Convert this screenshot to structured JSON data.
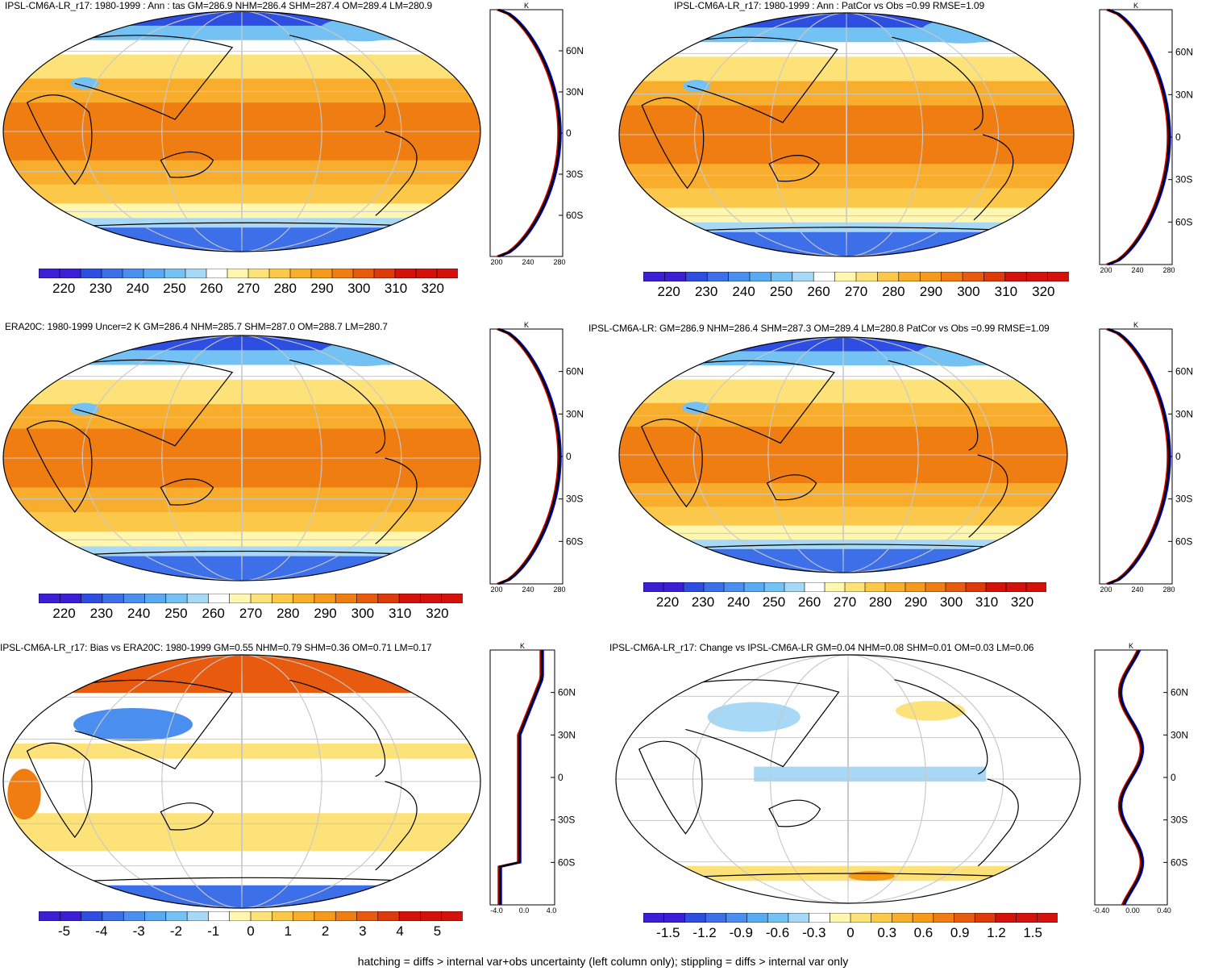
{
  "panels": [
    {
      "id": "p1",
      "title": "IPSL-CM6A-LR_r17: 1980-1999 : Ann : tas GM=286.9 NHM=286.4 SHM=287.4 OM=289.4 LM=280.9",
      "kind": "abs",
      "colorbar": [
        "220",
        "230",
        "240",
        "250",
        "260",
        "270",
        "280",
        "290",
        "300",
        "310",
        "320"
      ],
      "zonal_lat_labels": [
        "60N",
        "30N",
        "0",
        "30S",
        "60S"
      ],
      "zonal_unit": "K",
      "zonal_ticks": [
        "200",
        "240",
        "280"
      ]
    },
    {
      "id": "p2",
      "title": "IPSL-CM6A-LR_r17: 1980-1999 : Ann : PatCor vs Obs =0.99 RMSE=1.09",
      "kind": "abs",
      "colorbar": [
        "220",
        "230",
        "240",
        "250",
        "260",
        "270",
        "280",
        "290",
        "300",
        "310",
        "320"
      ],
      "zonal_lat_labels": [
        "60N",
        "30N",
        "0",
        "30S",
        "60S"
      ],
      "zonal_unit": "K",
      "zonal_ticks": [
        "200",
        "240",
        "280"
      ]
    },
    {
      "id": "p3",
      "title": "ERA20C: 1980-1999 Uncer=2 K GM=286.4 NHM=285.7 SHM=287.0 OM=288.7 LM=280.7",
      "kind": "abs",
      "colorbar": [
        "220",
        "230",
        "240",
        "250",
        "260",
        "270",
        "280",
        "290",
        "300",
        "310",
        "320"
      ],
      "zonal_lat_labels": [
        "60N",
        "30N",
        "0",
        "30S",
        "60S"
      ],
      "zonal_unit": "K",
      "zonal_ticks": [
        "200",
        "240",
        "280"
      ]
    },
    {
      "id": "p4",
      "title": "IPSL-CM6A-LR: GM=286.9 NHM=286.4 SHM=287.3 OM=289.4 LM=280.8 PatCor vs Obs =0.99 RMSE=1.09",
      "kind": "abs",
      "colorbar": [
        "220",
        "230",
        "240",
        "250",
        "260",
        "270",
        "280",
        "290",
        "300",
        "310",
        "320"
      ],
      "zonal_lat_labels": [
        "60N",
        "30N",
        "0",
        "30S",
        "60S"
      ],
      "zonal_unit": "K",
      "zonal_ticks": [
        "200",
        "240",
        "280"
      ]
    },
    {
      "id": "p5",
      "title": "IPSL-CM6A-LR_r17: Bias vs ERA20C: 1980-1999 GM=0.55 NHM=0.79 SHM=0.36 OM=0.71 LM=0.17",
      "kind": "bias",
      "colorbar": [
        "-5",
        "-4",
        "-3",
        "-2",
        "-1",
        "0",
        "1",
        "2",
        "3",
        "4",
        "5"
      ],
      "zonal_lat_labels": [
        "60N",
        "30N",
        "0",
        "30S",
        "60S"
      ],
      "zonal_unit": "K",
      "zonal_ticks": [
        "-4.0",
        "0.0",
        "4.0"
      ]
    },
    {
      "id": "p6",
      "title": "IPSL-CM6A-LR_r17: Change vs IPSL-CM6A-LR GM=0.04 NHM=0.08 SHM=0.01 OM=0.03 LM=0.06",
      "kind": "change",
      "colorbar": [
        "-1.5",
        "-1.2",
        "-0.9",
        "-0.6",
        "-0.3",
        "0",
        "0.3",
        "0.6",
        "0.9",
        "1.2",
        "1.5"
      ],
      "zonal_lat_labels": [
        "60N",
        "30N",
        "0",
        "30S",
        "60S"
      ],
      "zonal_unit": "K",
      "zonal_ticks": [
        "-0.40",
        "0.00",
        "0.40"
      ]
    }
  ],
  "footnote": "hatching = diffs > internal var+obs uncertainty (left column only); stippling = diffs > internal var only",
  "colors": {
    "abs": [
      "#3a1fd6",
      "#2d4ee0",
      "#3d6fe8",
      "#4a8fef",
      "#58aaf2",
      "#74c2f4",
      "#a7d8f6",
      "#ffffff",
      "#fff6b0",
      "#fde27a",
      "#fbc84a",
      "#f8ae2c",
      "#f59a1a",
      "#f07d12",
      "#e85a0e",
      "#df3a0a",
      "#d4110a"
    ],
    "bias": [
      "#3a1fd6",
      "#2d4ee0",
      "#3d6fe8",
      "#4a8fef",
      "#58aaf2",
      "#74c2f4",
      "#a7d8f6",
      "#ffffff",
      "#fff6b0",
      "#fde27a",
      "#fbc84a",
      "#f8ae2c",
      "#f59a1a",
      "#f07d12",
      "#e85a0e",
      "#df3a0a",
      "#d4110a"
    ],
    "change": [
      "#3a1fd6",
      "#2d4ee0",
      "#3d6fe8",
      "#4a8fef",
      "#58aaf2",
      "#74c2f4",
      "#a7d8f6",
      "#ffffff",
      "#fff6b0",
      "#fde27a",
      "#fbc84a",
      "#f8ae2c",
      "#f59a1a",
      "#f07d12",
      "#e85a0e",
      "#df3a0a",
      "#d4110a"
    ],
    "land": "#000000",
    "grid": "#c8c8c8",
    "zonal_model": "#e00000",
    "zonal_obs": "#0000e0",
    "zonal_mean": "#000000"
  }
}
